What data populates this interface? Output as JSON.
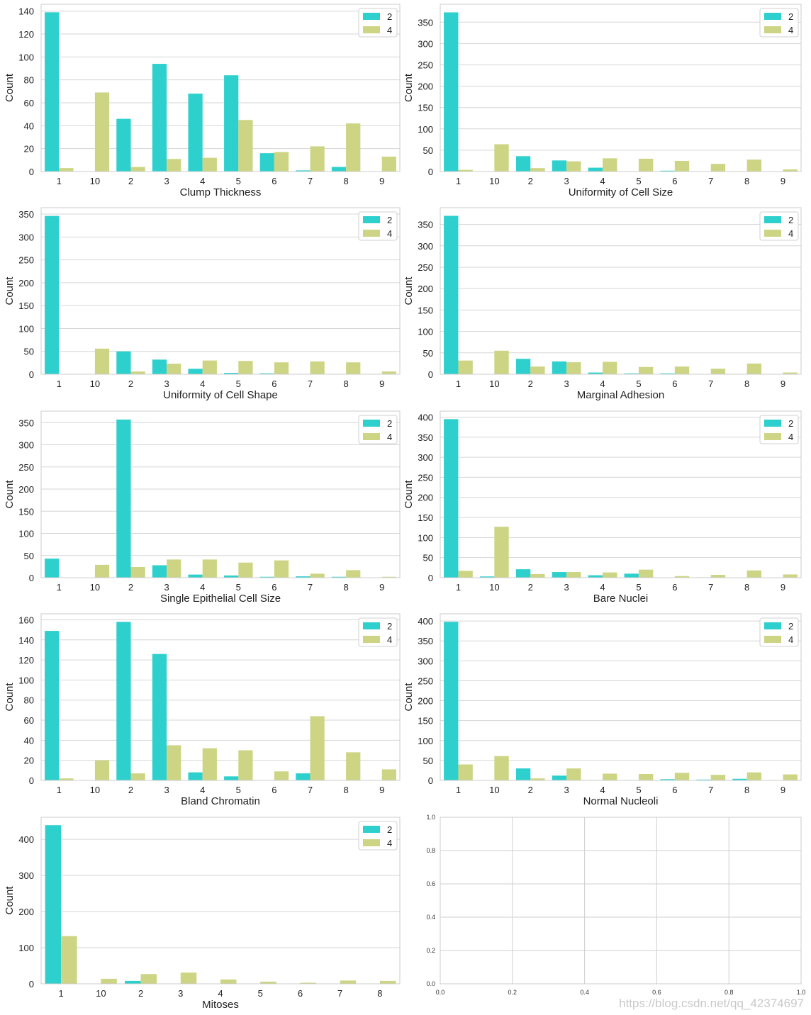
{
  "watermark": "https://blog.csdn.net/qq_42374697",
  "chart_data": [
    {
      "type": "bar",
      "xlabel": "Clump Thickness",
      "ylabel": "Count",
      "categories": [
        "1",
        "10",
        "2",
        "3",
        "4",
        "5",
        "6",
        "7",
        "8",
        "9"
      ],
      "series": [
        {
          "name": "2",
          "color": "#2ed0ce",
          "values": [
            139,
            0,
            46,
            94,
            68,
            84,
            16,
            1,
            4,
            0
          ]
        },
        {
          "name": "4",
          "color": "#cdd584",
          "values": [
            3,
            69,
            4,
            11,
            12,
            45,
            17,
            22,
            42,
            13
          ]
        }
      ],
      "ylim": [
        0,
        146
      ],
      "yticks": [
        0,
        20,
        40,
        60,
        80,
        100,
        120,
        140
      ],
      "legend": "top-right",
      "grid": true
    },
    {
      "type": "bar",
      "xlabel": "Uniformity of Cell Size",
      "ylabel": "Count",
      "categories": [
        "1",
        "10",
        "2",
        "3",
        "4",
        "5",
        "6",
        "7",
        "8",
        "9"
      ],
      "series": [
        {
          "name": "2",
          "color": "#2ed0ce",
          "values": [
            373,
            0,
            36,
            26,
            9,
            0,
            2,
            0,
            0,
            0
          ]
        },
        {
          "name": "4",
          "color": "#cdd584",
          "values": [
            4,
            64,
            8,
            24,
            31,
            30,
            25,
            18,
            28,
            5
          ]
        }
      ],
      "ylim": [
        0,
        392
      ],
      "yticks": [
        0,
        50,
        100,
        150,
        200,
        250,
        300,
        350
      ],
      "legend": "top-right",
      "grid": true
    },
    {
      "type": "bar",
      "xlabel": "Uniformity of Cell Shape",
      "ylabel": "Count",
      "categories": [
        "1",
        "10",
        "2",
        "3",
        "4",
        "5",
        "6",
        "7",
        "8",
        "9"
      ],
      "series": [
        {
          "name": "2",
          "color": "#2ed0ce",
          "values": [
            346,
            0,
            50,
            32,
            12,
            3,
            2,
            0,
            0,
            0
          ]
        },
        {
          "name": "4",
          "color": "#cdd584",
          "values": [
            0,
            56,
            6,
            23,
            30,
            29,
            26,
            28,
            26,
            6
          ]
        }
      ],
      "ylim": [
        0,
        364
      ],
      "yticks": [
        0,
        50,
        100,
        150,
        200,
        250,
        300,
        350
      ],
      "legend": "top-right",
      "grid": true
    },
    {
      "type": "bar",
      "xlabel": "Marginal Adhesion",
      "ylabel": "Count",
      "categories": [
        "1",
        "10",
        "2",
        "3",
        "4",
        "5",
        "6",
        "7",
        "8",
        "9"
      ],
      "series": [
        {
          "name": "2",
          "color": "#2ed0ce",
          "values": [
            370,
            0,
            36,
            30,
            4,
            2,
            2,
            0,
            0,
            0
          ]
        },
        {
          "name": "4",
          "color": "#cdd584",
          "values": [
            32,
            55,
            18,
            28,
            29,
            17,
            18,
            13,
            25,
            4
          ]
        }
      ],
      "ylim": [
        0,
        389
      ],
      "yticks": [
        0,
        50,
        100,
        150,
        200,
        250,
        300,
        350
      ],
      "legend": "top-right",
      "grid": true
    },
    {
      "type": "bar",
      "xlabel": "Single Epithelial Cell Size",
      "ylabel": "Count",
      "categories": [
        "1",
        "10",
        "2",
        "3",
        "4",
        "5",
        "6",
        "7",
        "8",
        "9"
      ],
      "series": [
        {
          "name": "2",
          "color": "#2ed0ce",
          "values": [
            43,
            0,
            357,
            28,
            7,
            5,
            2,
            3,
            2,
            0
          ]
        },
        {
          "name": "4",
          "color": "#cdd584",
          "values": [
            0,
            29,
            24,
            41,
            41,
            34,
            39,
            9,
            17,
            2
          ]
        }
      ],
      "ylim": [
        0,
        376
      ],
      "yticks": [
        0,
        50,
        100,
        150,
        200,
        250,
        300,
        350
      ],
      "legend": "top-right",
      "grid": true
    },
    {
      "type": "bar",
      "xlabel": "Bare Nuclei",
      "ylabel": "Count",
      "categories": [
        "1",
        "10",
        "2",
        "3",
        "4",
        "5",
        "6",
        "7",
        "8",
        "9"
      ],
      "series": [
        {
          "name": "2",
          "color": "#2ed0ce",
          "values": [
            395,
            3,
            21,
            14,
            6,
            10,
            0,
            1,
            0,
            0
          ]
        },
        {
          "name": "4",
          "color": "#cdd584",
          "values": [
            17,
            127,
            9,
            14,
            13,
            20,
            4,
            7,
            18,
            8
          ]
        }
      ],
      "ylim": [
        0,
        415
      ],
      "yticks": [
        0,
        50,
        100,
        150,
        200,
        250,
        300,
        350,
        400
      ],
      "legend": "top-right",
      "grid": true
    },
    {
      "type": "bar",
      "xlabel": "Bland Chromatin",
      "ylabel": "Count",
      "categories": [
        "1",
        "10",
        "2",
        "3",
        "4",
        "5",
        "6",
        "7",
        "8",
        "9"
      ],
      "series": [
        {
          "name": "2",
          "color": "#2ed0ce",
          "values": [
            149,
            0,
            158,
            126,
            8,
            4,
            0,
            7,
            0,
            0
          ]
        },
        {
          "name": "4",
          "color": "#cdd584",
          "values": [
            2,
            20,
            7,
            35,
            32,
            30,
            9,
            64,
            28,
            11
          ]
        }
      ],
      "ylim": [
        0,
        166
      ],
      "yticks": [
        0,
        20,
        40,
        60,
        80,
        100,
        120,
        140,
        160
      ],
      "legend": "top-right",
      "grid": true
    },
    {
      "type": "bar",
      "xlabel": "Normal Nucleoli",
      "ylabel": "Count",
      "categories": [
        "1",
        "10",
        "2",
        "3",
        "4",
        "5",
        "6",
        "7",
        "8",
        "9"
      ],
      "series": [
        {
          "name": "2",
          "color": "#2ed0ce",
          "values": [
            398,
            0,
            30,
            12,
            1,
            1,
            3,
            2,
            4,
            0
          ]
        },
        {
          "name": "4",
          "color": "#cdd584",
          "values": [
            40,
            61,
            5,
            30,
            17,
            16,
            19,
            14,
            20,
            15
          ]
        }
      ],
      "ylim": [
        0,
        418
      ],
      "yticks": [
        0,
        50,
        100,
        150,
        200,
        250,
        300,
        350,
        400
      ],
      "legend": "top-right",
      "grid": true
    },
    {
      "type": "bar",
      "xlabel": "Mitoses",
      "ylabel": "Count",
      "categories": [
        "1",
        "10",
        "2",
        "3",
        "4",
        "5",
        "6",
        "7",
        "8"
      ],
      "series": [
        {
          "name": "2",
          "color": "#2ed0ce",
          "values": [
            439,
            0,
            8,
            0,
            0,
            0,
            0,
            0,
            0
          ]
        },
        {
          "name": "4",
          "color": "#cdd584",
          "values": [
            132,
            14,
            27,
            31,
            12,
            6,
            3,
            9,
            8
          ]
        }
      ],
      "ylim": [
        0,
        461
      ],
      "yticks": [
        0,
        100,
        200,
        300,
        400
      ],
      "legend": "top-right",
      "grid": true
    },
    {
      "type": "empty",
      "xlim": [
        0,
        1
      ],
      "ylim": [
        0,
        1
      ],
      "xticks": [
        "0.0",
        "0.2",
        "0.4",
        "0.6",
        "0.8",
        "1.0"
      ],
      "yticks": [
        "0.0",
        "0.2",
        "0.4",
        "0.6",
        "0.8",
        "1.0"
      ],
      "grid": true
    }
  ]
}
